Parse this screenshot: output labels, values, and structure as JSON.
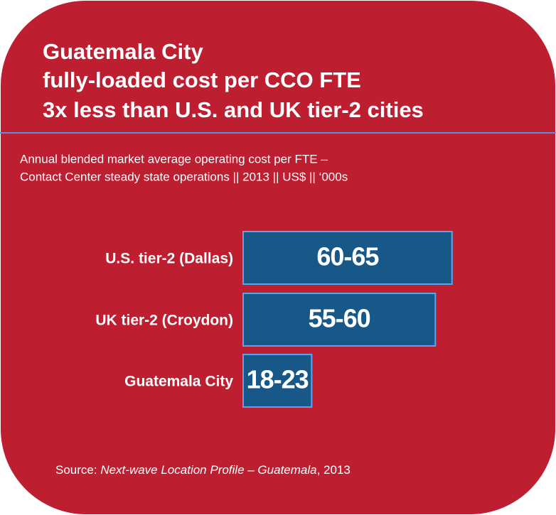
{
  "chart_data": {
    "type": "bar",
    "title": [
      "Guatemala City",
      "fully-loaded cost per CCO FTE",
      "3x less than U.S. and UK tier-2 cities"
    ],
    "subtitle": [
      "Annual blended market average operating cost per FTE –",
      "Contact Center steady state operations || 2013 || US$ || ‘000s"
    ],
    "categories": [
      "U.S. tier-2 (Dallas)",
      "UK tier-2 (Croydon)",
      "Guatemala City"
    ],
    "low": [
      60,
      55,
      18
    ],
    "high": [
      65,
      60,
      23
    ],
    "value_labels": [
      "60-65",
      "55-60",
      "18-23"
    ],
    "color": "#175888",
    "source": {
      "prefix": "Source:",
      "title": "Next-wave Location Profile – Guatemala",
      "suffix": ", 2013"
    }
  }
}
